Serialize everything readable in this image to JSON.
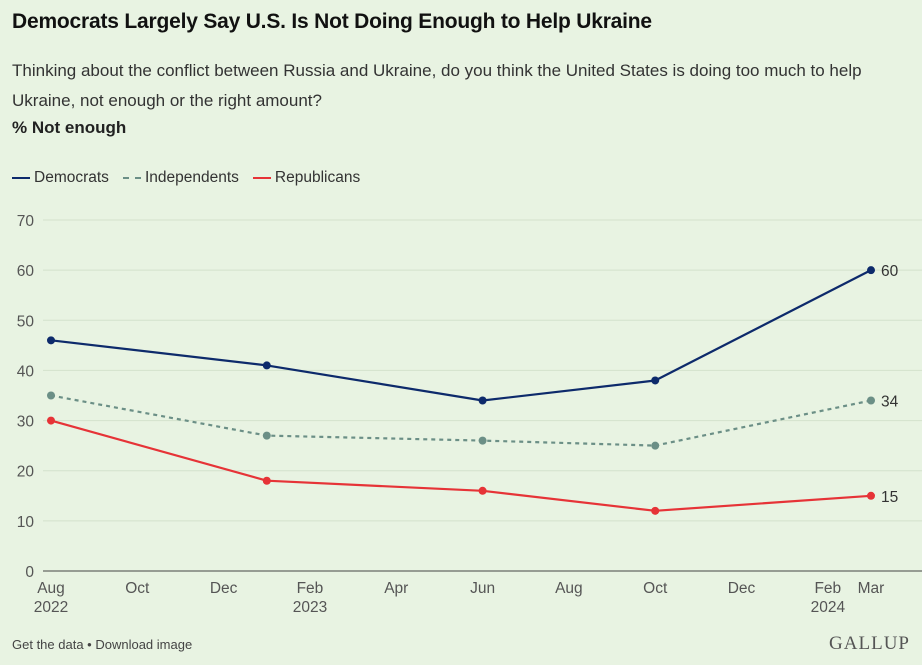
{
  "header": {
    "title": "Democrats Largely Say U.S. Is Not Doing Enough to Help Ukraine",
    "subtitle": "Thinking about the conflict between Russia and Ukraine, do you think the United States is doing too much to help Ukraine, not enough or the right amount?",
    "measure": "% Not enough"
  },
  "footer": {
    "get_data": "Get the data",
    "separator": " • ",
    "download": "Download image",
    "logo": "GALLUP"
  },
  "colors": {
    "democrats": "#0d2a6b",
    "independents": "#6b8f86",
    "republicans": "#e63337",
    "grid": "#d3e2cc",
    "axis": "#555555"
  },
  "chart_data": {
    "type": "line",
    "title": "Democrats Largely Say U.S. Is Not Doing Enough to Help Ukraine",
    "ylabel": "% Not enough",
    "ylim": [
      0,
      70
    ],
    "yticks": [
      0,
      10,
      20,
      30,
      40,
      50,
      60,
      70
    ],
    "grid": true,
    "legend": "top-left",
    "x": [
      "2022-08",
      "2023-01",
      "2023-06",
      "2023-10",
      "2024-03"
    ],
    "xlim": [
      "2022-08",
      "2024-03"
    ],
    "xticks": [
      {
        "date": "2022-08",
        "label": "Aug",
        "year": "2022"
      },
      {
        "date": "2022-10",
        "label": "Oct",
        "year": ""
      },
      {
        "date": "2022-12",
        "label": "Dec",
        "year": ""
      },
      {
        "date": "2023-02",
        "label": "Feb",
        "year": "2023"
      },
      {
        "date": "2023-04",
        "label": "Apr",
        "year": ""
      },
      {
        "date": "2023-06",
        "label": "Jun",
        "year": ""
      },
      {
        "date": "2023-08",
        "label": "Aug",
        "year": ""
      },
      {
        "date": "2023-10",
        "label": "Oct",
        "year": ""
      },
      {
        "date": "2023-12",
        "label": "Dec",
        "year": ""
      },
      {
        "date": "2024-02",
        "label": "Feb",
        "year": "2024"
      },
      {
        "date": "2024-03",
        "label": "Mar",
        "year": ""
      }
    ],
    "series": [
      {
        "name": "Democrats",
        "key": "democrats",
        "style": "solid",
        "values": [
          46,
          41,
          34,
          38,
          60
        ],
        "end_label": "60"
      },
      {
        "name": "Independents",
        "key": "independents",
        "style": "dashed",
        "values": [
          35,
          27,
          26,
          25,
          34
        ],
        "end_label": "34"
      },
      {
        "name": "Republicans",
        "key": "republicans",
        "style": "solid",
        "values": [
          30,
          18,
          16,
          12,
          15
        ],
        "end_label": "15"
      }
    ]
  }
}
